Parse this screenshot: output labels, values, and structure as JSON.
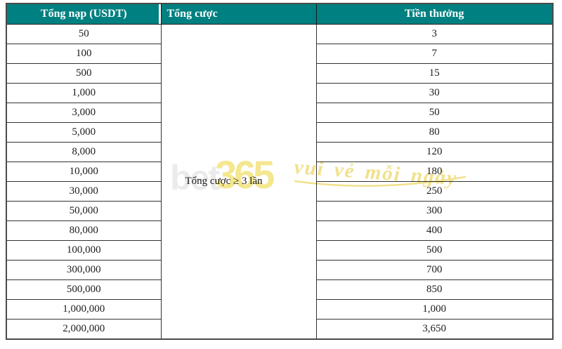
{
  "table": {
    "header_bg": "#008080",
    "header_text_color": "#ffffff",
    "columns": [
      {
        "label": "Tổng nạp (USDT)"
      },
      {
        "label": "Tổng cược"
      },
      {
        "label": "Tiền thưởng"
      }
    ],
    "merged_cell": "Tổng cược ≥ 3 lần",
    "rows": [
      {
        "deposit": "50",
        "bonus": "3"
      },
      {
        "deposit": "100",
        "bonus": "7"
      },
      {
        "deposit": "500",
        "bonus": "15"
      },
      {
        "deposit": "1,000",
        "bonus": "30"
      },
      {
        "deposit": "3,000",
        "bonus": "50"
      },
      {
        "deposit": "5,000",
        "bonus": "80"
      },
      {
        "deposit": "8,000",
        "bonus": "120"
      },
      {
        "deposit": "10,000",
        "bonus": "180"
      },
      {
        "deposit": "30,000",
        "bonus": "250"
      },
      {
        "deposit": "50,000",
        "bonus": "300"
      },
      {
        "deposit": "80,000",
        "bonus": "400"
      },
      {
        "deposit": "100,000",
        "bonus": "500"
      },
      {
        "deposit": "300,000",
        "bonus": "700"
      },
      {
        "deposit": "500,000",
        "bonus": "850"
      },
      {
        "deposit": "1,000,000",
        "bonus": "1,000"
      },
      {
        "deposit": "2,000,000",
        "bonus": "3,650"
      }
    ]
  },
  "watermark": {
    "prefix": "bet",
    "number": "365",
    "tagline": "vui vẻ mỗi ngày",
    "yellow": "#f4e78f",
    "gray": "#ebebeb"
  }
}
